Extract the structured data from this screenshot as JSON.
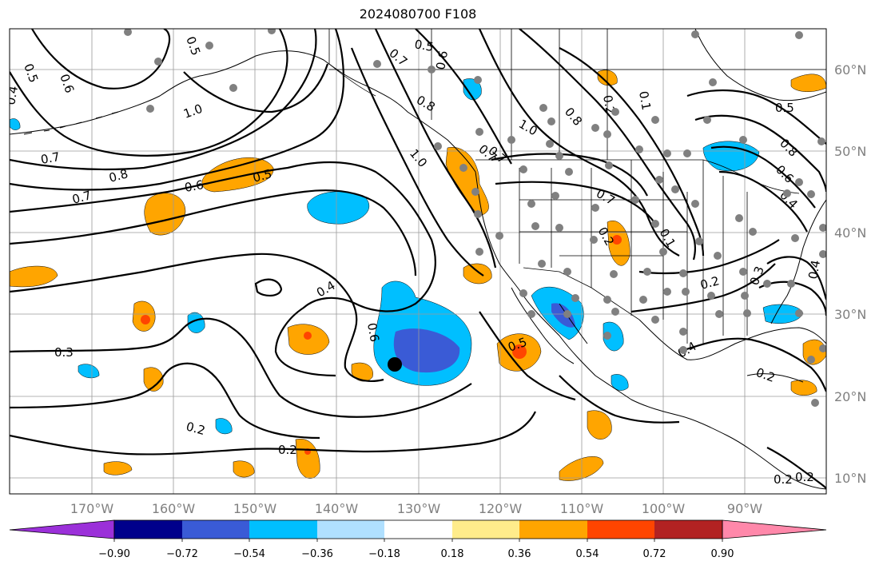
{
  "title": "2024080700 F108",
  "map": {
    "lon_labels": [
      "170°W",
      "160°W",
      "150°W",
      "140°W",
      "130°W",
      "120°W",
      "110°W",
      "100°W",
      "90°W"
    ],
    "lat_labels": [
      "60°N",
      "50°N",
      "40°N",
      "30°N",
      "20°N",
      "10°N"
    ],
    "contour_labels": [
      "0.5",
      "0.4",
      "0.6",
      "1.0",
      "0.7",
      "0.8",
      "0.7",
      "0.6",
      "0.5",
      "0.3",
      "0.2",
      "0.2",
      "0.4",
      "0.6",
      "0.5",
      "0.7",
      "0.5",
      "0.6",
      "0.8",
      "1.0",
      "0.7",
      "0.8",
      "0.7",
      "1.0",
      "0.2",
      "0.1",
      "0.7",
      "0.1",
      "0.2",
      "0.3",
      "0.4",
      "0.2",
      "0.4",
      "0.2",
      "0.5",
      "0.8",
      "0.6",
      "0.4",
      "0.2",
      "0.2"
    ],
    "colors": {
      "land_coast": "#000000",
      "contour": "#000000",
      "grid": "#9a9a9a",
      "station_dot": "#808080",
      "marker": "#000000"
    }
  },
  "colorbar": {
    "tick_labels": [
      "−0.90",
      "−0.72",
      "−0.54",
      "−0.36",
      "−0.18",
      "0.18",
      "0.36",
      "0.54",
      "0.72",
      "0.90"
    ],
    "colors": [
      "#9b30d9",
      "#00008b",
      "#3a5bd6",
      "#00bfff",
      "#b0e0ff",
      "#ffffff",
      "#ffec8b",
      "#ffa500",
      "#ff4500",
      "#b22222",
      "#ff88aa"
    ]
  }
}
